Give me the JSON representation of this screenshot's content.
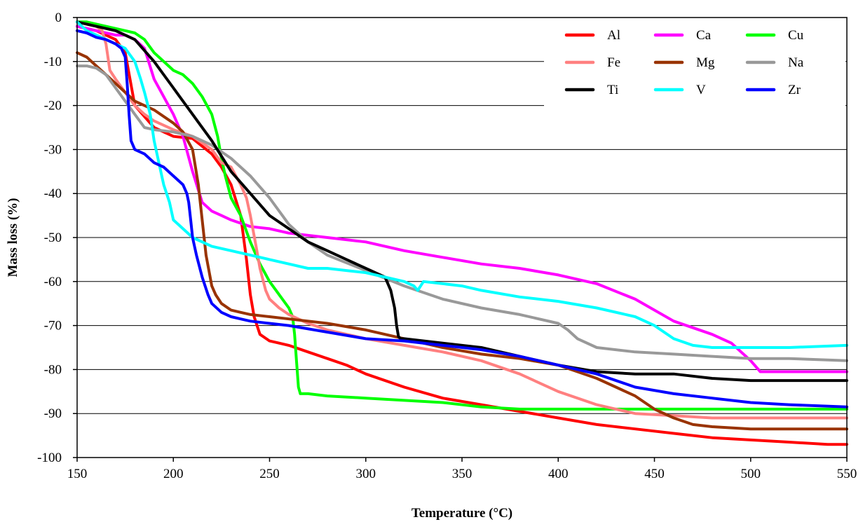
{
  "chart_data": {
    "type": "line",
    "title": "",
    "xlabel": "Temperature (°C)",
    "ylabel": "Mass loss (%)",
    "xlim": [
      150,
      550
    ],
    "ylim": [
      -100,
      0
    ],
    "xticks": [
      150,
      200,
      250,
      300,
      350,
      400,
      450,
      500,
      550
    ],
    "yticks": [
      0,
      -10,
      -20,
      -30,
      -40,
      -50,
      -60,
      -70,
      -80,
      -90,
      -100
    ],
    "grid": "horizontal",
    "legend": "top-right, 3 columns",
    "series": [
      {
        "name": "Al",
        "color": "#ff0000",
        "x": [
          150,
          160,
          170,
          175,
          180,
          190,
          200,
          210,
          220,
          225,
          230,
          235,
          238,
          240,
          242,
          245,
          250,
          255,
          260,
          270,
          280,
          290,
          300,
          320,
          340,
          360,
          380,
          400,
          420,
          440,
          460,
          480,
          500,
          520,
          540,
          550
        ],
        "y": [
          -2,
          -3,
          -5,
          -8,
          -20,
          -25,
          -27,
          -27.5,
          -31,
          -34,
          -38,
          -45,
          -55,
          -63,
          -68,
          -72,
          -73.5,
          -74,
          -74.5,
          -76,
          -77.5,
          -79,
          -81,
          -84,
          -86.5,
          -88,
          -89.5,
          -91,
          -92.5,
          -93.5,
          -94.5,
          -95.5,
          -96,
          -96.5,
          -97,
          -97
        ]
      },
      {
        "name": "Ca",
        "color": "#ff00ff",
        "x": [
          150,
          160,
          170,
          175,
          180,
          185,
          190,
          200,
          205,
          210,
          215,
          220,
          225,
          230,
          240,
          250,
          260,
          280,
          300,
          320,
          340,
          360,
          380,
          400,
          420,
          440,
          460,
          480,
          490,
          500,
          505,
          506,
          520,
          550
        ],
        "y": [
          -2,
          -3,
          -4,
          -4,
          -5,
          -7,
          -14,
          -22,
          -27,
          -35,
          -42,
          -44,
          -45,
          -46,
          -47.5,
          -48,
          -49,
          -50,
          -51,
          -53,
          -54.5,
          -56,
          -57,
          -58.5,
          -60.5,
          -64,
          -69,
          -72,
          -74,
          -78,
          -80.5,
          -80.5,
          -80.5,
          -80.5
        ]
      },
      {
        "name": "Cu",
        "color": "#00ff00",
        "x": [
          150,
          155,
          160,
          165,
          170,
          175,
          180,
          185,
          190,
          200,
          205,
          210,
          215,
          220,
          223,
          225,
          227,
          230,
          235,
          240,
          245,
          250,
          255,
          260,
          262,
          263,
          264,
          265,
          266,
          270,
          280,
          300,
          320,
          340,
          360,
          380,
          400,
          450,
          500,
          550
        ],
        "y": [
          -1,
          -1,
          -1.5,
          -2,
          -2.5,
          -3,
          -3.5,
          -5,
          -8,
          -12,
          -13,
          -15,
          -18,
          -22,
          -27,
          -32,
          -36,
          -41,
          -45,
          -51,
          -56,
          -60,
          -63,
          -66,
          -68,
          -72,
          -78,
          -84,
          -85.5,
          -85.5,
          -86,
          -86.5,
          -87,
          -87.5,
          -88.5,
          -89,
          -89,
          -89,
          -89,
          -89
        ]
      },
      {
        "name": "Fe",
        "color": "#ff8080",
        "x": [
          150,
          160,
          163,
          165,
          167,
          170,
          175,
          180,
          185,
          190,
          200,
          210,
          220,
          225,
          230,
          235,
          238,
          240,
          243,
          245,
          248,
          250,
          255,
          260,
          270,
          280,
          300,
          320,
          340,
          360,
          380,
          400,
          420,
          440,
          460,
          480,
          500,
          520,
          550
        ],
        "y": [
          -1,
          -2,
          -3,
          -6,
          -12,
          -14,
          -17,
          -20,
          -22,
          -23.5,
          -25.5,
          -27,
          -30,
          -33,
          -34,
          -38,
          -41,
          -45,
          -52,
          -57,
          -62,
          -64,
          -66,
          -67.5,
          -69.5,
          -71,
          -73,
          -74.5,
          -76,
          -78,
          -81,
          -85,
          -88,
          -90,
          -90.5,
          -91,
          -91,
          -91,
          -91
        ]
      },
      {
        "name": "Mg",
        "color": "#993300",
        "x": [
          150,
          155,
          160,
          165,
          170,
          175,
          180,
          190,
          200,
          205,
          210,
          213,
          215,
          217,
          220,
          222,
          225,
          230,
          235,
          240,
          250,
          260,
          280,
          300,
          320,
          340,
          360,
          380,
          400,
          410,
          420,
          430,
          440,
          450,
          460,
          470,
          480,
          500,
          520,
          550
        ],
        "y": [
          -8,
          -9,
          -11,
          -13,
          -15,
          -17,
          -19,
          -21,
          -24,
          -26,
          -30,
          -38,
          -46,
          -54,
          -61,
          -63,
          -65,
          -66.5,
          -67,
          -67.5,
          -68,
          -68.5,
          -69.5,
          -71,
          -73,
          -75,
          -76.5,
          -77.5,
          -79,
          -80.5,
          -82,
          -84,
          -86,
          -89,
          -91,
          -92.5,
          -93,
          -93.5,
          -93.5,
          -93.5
        ]
      },
      {
        "name": "Na",
        "color": "#999999",
        "x": [
          150,
          155,
          160,
          165,
          170,
          175,
          180,
          185,
          190,
          200,
          210,
          220,
          230,
          240,
          250,
          260,
          270,
          280,
          300,
          320,
          340,
          360,
          380,
          400,
          405,
          410,
          420,
          440,
          460,
          480,
          500,
          520,
          550
        ],
        "y": [
          -11,
          -11,
          -11.5,
          -13,
          -16,
          -19,
          -22,
          -25,
          -25.5,
          -26,
          -27,
          -29,
          -32,
          -36,
          -41,
          -47,
          -51,
          -54,
          -57.5,
          -61,
          -64,
          -66,
          -67.5,
          -69.5,
          -71,
          -73,
          -75,
          -76,
          -76.5,
          -77,
          -77.5,
          -77.5,
          -78
        ]
      },
      {
        "name": "Ti",
        "color": "#000000",
        "x": [
          150,
          160,
          170,
          180,
          190,
          200,
          210,
          220,
          230,
          240,
          250,
          260,
          270,
          280,
          290,
          300,
          305,
          310,
          313,
          315,
          316,
          317,
          318,
          320,
          340,
          360,
          380,
          400,
          420,
          440,
          460,
          480,
          500,
          520,
          550
        ],
        "y": [
          -1,
          -2,
          -3,
          -5,
          -10,
          -16,
          -22,
          -28,
          -35,
          -40,
          -45,
          -48,
          -51,
          -53,
          -55,
          -57,
          -58,
          -59,
          -62,
          -66,
          -70,
          -72.5,
          -73,
          -73,
          -74,
          -75,
          -77,
          -79,
          -80.5,
          -81,
          -81,
          -82,
          -82.5,
          -82.5,
          -82.5
        ]
      },
      {
        "name": "V",
        "color": "#00ffff",
        "x": [
          150,
          155,
          160,
          165,
          170,
          175,
          180,
          183,
          185,
          188,
          190,
          193,
          195,
          198,
          200,
          205,
          210,
          220,
          230,
          240,
          250,
          260,
          270,
          280,
          290,
          300,
          310,
          320,
          325,
          327,
          330,
          340,
          350,
          360,
          380,
          400,
          420,
          440,
          450,
          460,
          470,
          480,
          490,
          500,
          510,
          520,
          550
        ],
        "y": [
          -1,
          -3,
          -4,
          -5,
          -6,
          -7,
          -10,
          -14,
          -17,
          -22,
          -28,
          -34,
          -38,
          -42,
          -46,
          -48,
          -50,
          -52,
          -53,
          -54,
          -55,
          -56,
          -57,
          -57,
          -57.5,
          -58,
          -59,
          -60,
          -61,
          -62,
          -60,
          -60.5,
          -61,
          -62,
          -63.5,
          -64.5,
          -66,
          -68,
          -70,
          -73,
          -74.5,
          -75,
          -75,
          -75,
          -75,
          -75,
          -74.5
        ]
      },
      {
        "name": "Zr",
        "color": "#0000ff",
        "x": [
          150,
          155,
          160,
          165,
          170,
          173,
          175,
          176,
          177,
          178,
          180,
          185,
          190,
          195,
          200,
          205,
          207,
          208,
          209,
          210,
          212,
          215,
          218,
          220,
          225,
          230,
          235,
          240,
          250,
          260,
          280,
          300,
          320,
          340,
          360,
          380,
          400,
          420,
          440,
          460,
          480,
          500,
          520,
          550
        ],
        "y": [
          -3,
          -3.5,
          -4.5,
          -5,
          -6,
          -7,
          -9,
          -15,
          -22,
          -28,
          -30,
          -31,
          -33,
          -34,
          -36,
          -38,
          -40,
          -42,
          -46,
          -50,
          -54,
          -59,
          -63,
          -65,
          -67,
          -68,
          -68.5,
          -69,
          -69.5,
          -70,
          -71.5,
          -73,
          -73.5,
          -74.5,
          -75.5,
          -77,
          -79,
          -81,
          -84,
          -85.5,
          -86.5,
          -87.5,
          -88,
          -88.5
        ]
      }
    ]
  }
}
